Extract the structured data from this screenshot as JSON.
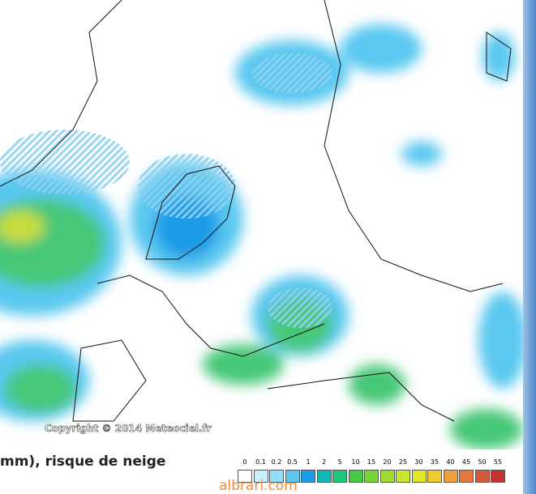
{
  "title": "mm), risque de neige",
  "copyright": "Copyright © 2014 Meteociel.fr",
  "watermark": "albrari.com",
  "legend": [
    {
      "label": "0",
      "color": "#ffffff"
    },
    {
      "label": "0.1",
      "color": "#c8f0ff"
    },
    {
      "label": "0.2",
      "color": "#96dcff"
    },
    {
      "label": "0.5",
      "color": "#5ac8f0"
    },
    {
      "label": "1",
      "color": "#1e9be6"
    },
    {
      "label": "2",
      "color": "#14b4b4"
    },
    {
      "label": "5",
      "color": "#1ec878"
    },
    {
      "label": "10",
      "color": "#46c846"
    },
    {
      "label": "15",
      "color": "#78d23c"
    },
    {
      "label": "20",
      "color": "#a0dc32"
    },
    {
      "label": "25",
      "color": "#c8e632"
    },
    {
      "label": "30",
      "color": "#e6e628"
    },
    {
      "label": "35",
      "color": "#f0c832"
    },
    {
      "label": "40",
      "color": "#f0a03c"
    },
    {
      "label": "45",
      "color": "#e67840"
    },
    {
      "label": "50",
      "color": "#d25a3c"
    },
    {
      "label": "55",
      "color": "#c83232"
    }
  ]
}
